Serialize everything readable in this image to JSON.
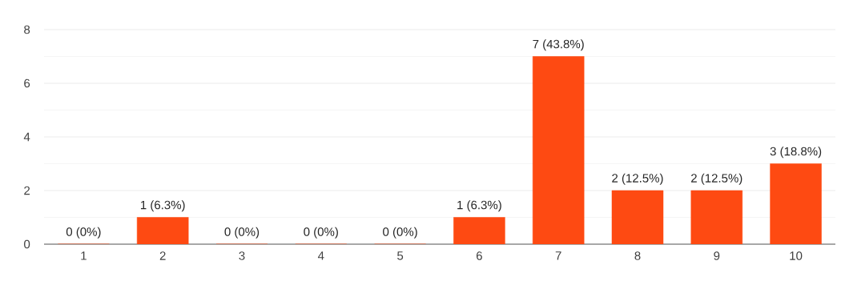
{
  "chart_data": {
    "type": "bar",
    "categories": [
      "1",
      "2",
      "3",
      "4",
      "5",
      "6",
      "7",
      "8",
      "9",
      "10"
    ],
    "values": [
      0,
      1,
      0,
      0,
      0,
      1,
      7,
      2,
      2,
      3
    ],
    "value_labels": [
      "0 (0%)",
      "1 (6.3%)",
      "0 (0%)",
      "0 (0%)",
      "0 (0%)",
      "1 (6.3%)",
      "7 (43.8%)",
      "2 (12.5%)",
      "2 (12.5%)",
      "3 (18.8%)"
    ],
    "color": "#fe4a12",
    "ylim": [
      0,
      8
    ],
    "yticks": [
      0,
      2,
      4,
      6,
      8
    ],
    "grid": "y"
  }
}
